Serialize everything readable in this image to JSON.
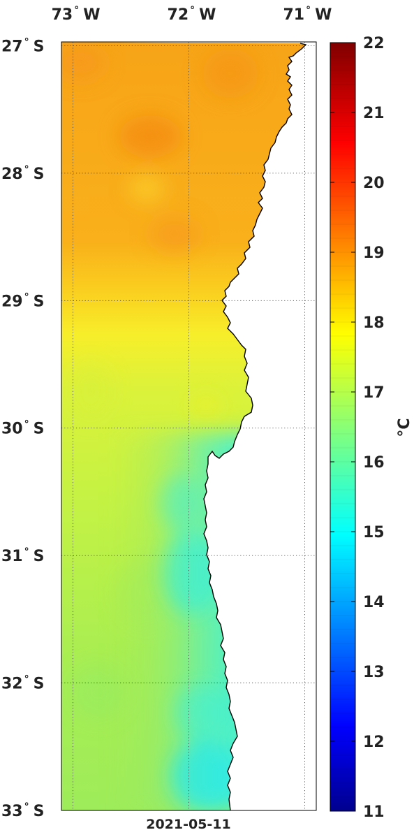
{
  "map": {
    "lon_labels": [
      {
        "text": "73",
        "suffix": "W",
        "lon": -73
      },
      {
        "text": "72",
        "suffix": "W",
        "lon": -72
      },
      {
        "text": "71",
        "suffix": "W",
        "lon": -71
      }
    ],
    "lat_labels": [
      {
        "text": "27",
        "suffix": "S",
        "lat": -27
      },
      {
        "text": "28",
        "suffix": "S",
        "lat": -28
      },
      {
        "text": "29",
        "suffix": "S",
        "lat": -29
      },
      {
        "text": "30",
        "suffix": "S",
        "lat": -30
      },
      {
        "text": "31",
        "suffix": "S",
        "lat": -31
      },
      {
        "text": "32",
        "suffix": "S",
        "lat": -32
      },
      {
        "text": "33",
        "suffix": "S",
        "lat": -33
      }
    ],
    "lon_range": [
      -73.1,
      -70.9
    ],
    "lat_range": [
      -33,
      -26.97
    ],
    "date": "2021-05-11",
    "land_color": "#ffffff",
    "coastline_color": "#000000"
  },
  "colorbar": {
    "min": 11,
    "max": 22,
    "ticks": [
      "11",
      "12",
      "13",
      "14",
      "15",
      "16",
      "17",
      "18",
      "19",
      "20",
      "21",
      "22"
    ],
    "unit": "°C",
    "colormap": "jet"
  },
  "sst_field": {
    "description_values": [
      {
        "region": "north offshore",
        "lat_range": [
          -29,
          -27
        ],
        "value": 18.7
      },
      {
        "region": "central",
        "lat_range": [
          -30,
          -29
        ],
        "value": 17.6
      },
      {
        "region": "south offshore",
        "lat_range": [
          -33,
          -30.5
        ],
        "value": 16.7
      },
      {
        "region": "south nearshore",
        "lat_range": [
          -33,
          -30.5
        ],
        "value": 15.3
      }
    ]
  }
}
